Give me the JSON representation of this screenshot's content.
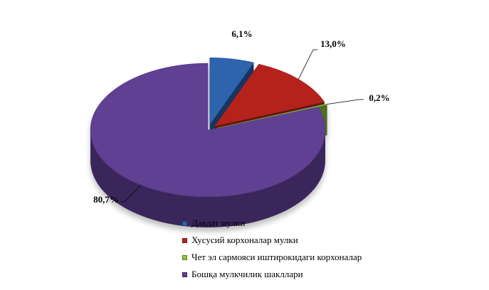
{
  "chart_data": {
    "type": "pie",
    "title": "",
    "categories": [
      "Давлат мулки",
      "Хусусий корхоналар мулки",
      "Чет эл сармояси иштирокидаги корхоналар",
      "Бошқа мулкчилик шакллари"
    ],
    "values": [
      6.1,
      13.0,
      0.2,
      80.7
    ],
    "value_labels": [
      "6,1%",
      "13,0%",
      "0,2%",
      "80,7%"
    ],
    "colors": [
      "#2e63ae",
      "#b5221e",
      "#8cc63f",
      "#5f3f92"
    ],
    "legend_position": "bottom",
    "style": "3d-exploded"
  }
}
